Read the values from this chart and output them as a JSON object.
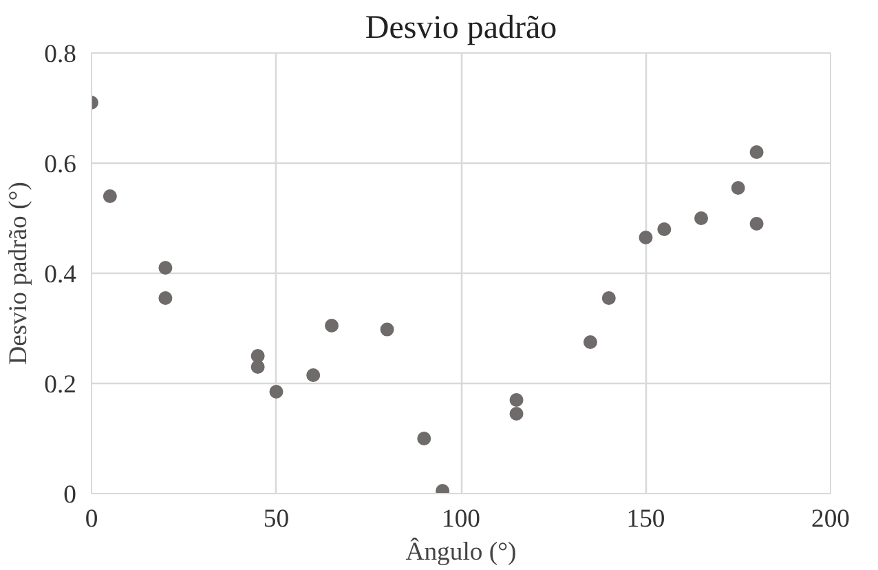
{
  "chart_data": {
    "type": "scatter",
    "title": "Desvio padrão",
    "xlabel": "Ângulo (°)",
    "ylabel": "Desvio padrão (°)",
    "x": [
      0,
      5,
      20,
      20,
      45,
      45,
      50,
      60,
      65,
      80,
      90,
      95,
      115,
      115,
      135,
      140,
      150,
      155,
      165,
      175,
      180,
      180
    ],
    "series": [
      {
        "color": "#6f6b6b",
        "values": [
          0.71,
          0.54,
          0.41,
          0.355,
          0.25,
          0.23,
          0.185,
          0.215,
          0.305,
          0.298,
          0.1,
          0.005,
          0.17,
          0.145,
          0.275,
          0.355,
          0.465,
          0.48,
          0.5,
          0.555,
          0.62,
          0.49
        ]
      }
    ],
    "xlim": [
      0,
      200
    ],
    "ylim": [
      0,
      0.8
    ],
    "xticks": [
      0,
      50,
      100,
      150,
      200
    ],
    "yticks": [
      0,
      {
        "value": 0.2,
        "label": "0.2"
      },
      {
        "value": 0.4,
        "label": "0.4"
      },
      {
        "value": 0.6,
        "label": "0.6"
      },
      {
        "value": 0.8,
        "label": "0.8"
      }
    ],
    "grid": true,
    "marker": "circle"
  }
}
